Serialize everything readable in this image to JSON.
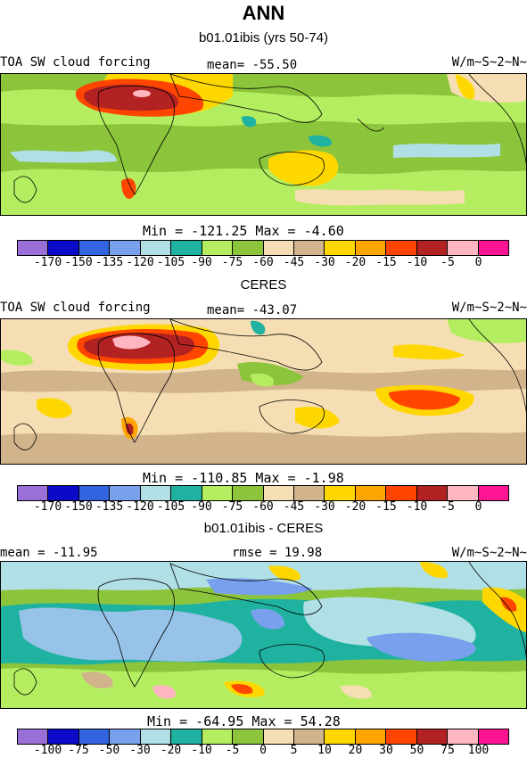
{
  "figure_title": "ANN",
  "panels": [
    {
      "title": "b01.01ibis (yrs 50-74)",
      "left_label": "TOA SW cloud forcing",
      "center_label": "mean= -55.50",
      "units": "W/m~S~2~N~",
      "minmax": "Min = -121.25 Max =  -4.60",
      "colors": [
        "#9a70d8",
        "#0a0ac8",
        "#3264e0",
        "#78a0ec",
        "#b0e0e6",
        "#20b2a0",
        "#b4ee60",
        "#8cc43c",
        "#f5deb3",
        "#d2b48c",
        "#ffd700",
        "#ffa500",
        "#ff4500",
        "#b22222",
        "#ffb6c1",
        "#ff1493"
      ],
      "ticks": [
        "-170",
        "-150",
        "-135",
        "-120",
        "-105",
        "-90",
        "-75",
        "-60",
        "-45",
        "-30",
        "-20",
        "-15",
        "-10",
        "-5",
        "0"
      ],
      "data_min": -121.25,
      "data_max": -4.6
    },
    {
      "title": "CERES",
      "left_label": "TOA SW cloud forcing",
      "center_label": "mean= -43.07",
      "units": "W/m~S~2~N~",
      "minmax": "Min = -110.85 Max =  -1.98",
      "colors": [
        "#9a70d8",
        "#0a0ac8",
        "#3264e0",
        "#78a0ec",
        "#b0e0e6",
        "#20b2a0",
        "#b4ee60",
        "#8cc43c",
        "#f5deb3",
        "#d2b48c",
        "#ffd700",
        "#ffa500",
        "#ff4500",
        "#b22222",
        "#ffb6c1",
        "#ff1493"
      ],
      "ticks": [
        "-170",
        "-150",
        "-135",
        "-120",
        "-105",
        "-90",
        "-75",
        "-60",
        "-45",
        "-30",
        "-20",
        "-15",
        "-10",
        "-5",
        "0"
      ],
      "data_min": -110.85,
      "data_max": -1.98
    },
    {
      "title": "b01.01ibis - CERES",
      "left_label": "mean = -11.95",
      "center_label": "rmse =  19.98",
      "units": "W/m~S~2~N~",
      "minmax": "Min = -64.95 Max =  54.28",
      "colors": [
        "#9a70d8",
        "#0a0ac8",
        "#3264e0",
        "#78a0ec",
        "#b0e0e6",
        "#20b2a0",
        "#b4ee60",
        "#8cc43c",
        "#f5deb3",
        "#d2b48c",
        "#ffd700",
        "#ffa500",
        "#ff4500",
        "#b22222",
        "#ffb6c1",
        "#ff1493"
      ],
      "ticks": [
        "-100",
        "-75",
        "-50",
        "-30",
        "-20",
        "-10",
        "-5",
        "0",
        "5",
        "10",
        "20",
        "30",
        "50",
        "75",
        "100"
      ],
      "data_min": -64.95,
      "data_max": 54.28
    }
  ],
  "chart_data": [
    {
      "type": "heatmap",
      "title": "b01.01ibis (yrs 50-74)",
      "variable": "TOA SW cloud forcing",
      "mean": -55.5,
      "min": -121.25,
      "max": -4.6,
      "units": "W/m~S~2~N~",
      "levels": [
        -170,
        -150,
        -135,
        -120,
        -105,
        -90,
        -75,
        -60,
        -45,
        -30,
        -20,
        -15,
        -10,
        -5,
        0
      ]
    },
    {
      "type": "heatmap",
      "title": "CERES",
      "variable": "TOA SW cloud forcing",
      "mean": -43.07,
      "min": -110.85,
      "max": -1.98,
      "units": "W/m~S~2~N~",
      "levels": [
        -170,
        -150,
        -135,
        -120,
        -105,
        -90,
        -75,
        -60,
        -45,
        -30,
        -20,
        -15,
        -10,
        -5,
        0
      ]
    },
    {
      "type": "heatmap",
      "title": "b01.01ibis - CERES",
      "mean": -11.95,
      "rmse": 19.98,
      "min": -64.95,
      "max": 54.28,
      "units": "W/m~S~2~N~",
      "levels": [
        -100,
        -75,
        -50,
        -30,
        -20,
        -10,
        -5,
        0,
        5,
        10,
        20,
        30,
        50,
        75,
        100
      ]
    }
  ]
}
